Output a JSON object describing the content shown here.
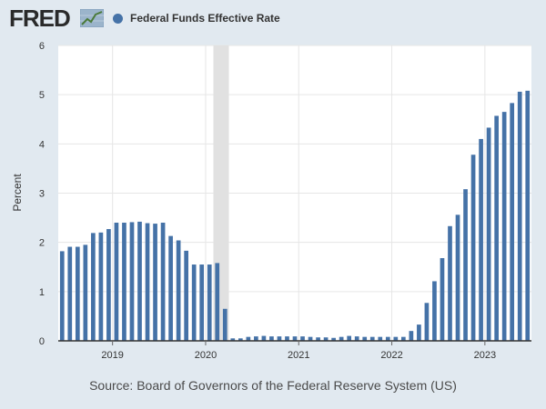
{
  "header": {
    "logo_text": "FRED",
    "logo_icon": "trend-line-icon",
    "legend_label": "Federal Funds Effective Rate"
  },
  "colors": {
    "background": "#e1e9f0",
    "plot_background": "#ffffff",
    "bar": "#4572a7",
    "recession": "#e1e1e1"
  },
  "source": "Source: Board of Governors of the Federal Reserve System (US)",
  "chart_data": {
    "type": "bar",
    "ylabel": "Percent",
    "ylim": [
      0,
      6
    ],
    "yticks": [
      0,
      1,
      2,
      3,
      4,
      5,
      6
    ],
    "xtick_labels": [
      "2019",
      "2020",
      "2021",
      "2022",
      "2023"
    ],
    "xlim": [
      "2018-06",
      "2023-07"
    ],
    "grid": true,
    "recession_shading": [
      "2020-02",
      "2020-04"
    ],
    "series": [
      {
        "name": "Federal Funds Effective Rate",
        "x": [
          "2018-06",
          "2018-07",
          "2018-08",
          "2018-09",
          "2018-10",
          "2018-11",
          "2018-12",
          "2019-01",
          "2019-02",
          "2019-03",
          "2019-04",
          "2019-05",
          "2019-06",
          "2019-07",
          "2019-08",
          "2019-09",
          "2019-10",
          "2019-11",
          "2019-12",
          "2020-01",
          "2020-02",
          "2020-03",
          "2020-04",
          "2020-05",
          "2020-06",
          "2020-07",
          "2020-08",
          "2020-09",
          "2020-10",
          "2020-11",
          "2020-12",
          "2021-01",
          "2021-02",
          "2021-03",
          "2021-04",
          "2021-05",
          "2021-06",
          "2021-07",
          "2021-08",
          "2021-09",
          "2021-10",
          "2021-11",
          "2021-12",
          "2022-01",
          "2022-02",
          "2022-03",
          "2022-04",
          "2022-05",
          "2022-06",
          "2022-07",
          "2022-08",
          "2022-09",
          "2022-10",
          "2022-11",
          "2022-12",
          "2023-01",
          "2023-02",
          "2023-03",
          "2023-04",
          "2023-05",
          "2023-06"
        ],
        "values": [
          1.82,
          1.91,
          1.91,
          1.95,
          2.19,
          2.2,
          2.27,
          2.4,
          2.4,
          2.41,
          2.42,
          2.39,
          2.38,
          2.4,
          2.13,
          2.04,
          1.83,
          1.55,
          1.55,
          1.55,
          1.58,
          0.65,
          0.05,
          0.05,
          0.08,
          0.09,
          0.1,
          0.09,
          0.09,
          0.09,
          0.09,
          0.09,
          0.08,
          0.07,
          0.07,
          0.06,
          0.08,
          0.1,
          0.09,
          0.08,
          0.08,
          0.08,
          0.08,
          0.08,
          0.08,
          0.2,
          0.33,
          0.77,
          1.21,
          1.68,
          2.33,
          2.56,
          3.08,
          3.78,
          4.1,
          4.33,
          4.57,
          4.65,
          4.83,
          5.06,
          5.08
        ]
      }
    ]
  }
}
